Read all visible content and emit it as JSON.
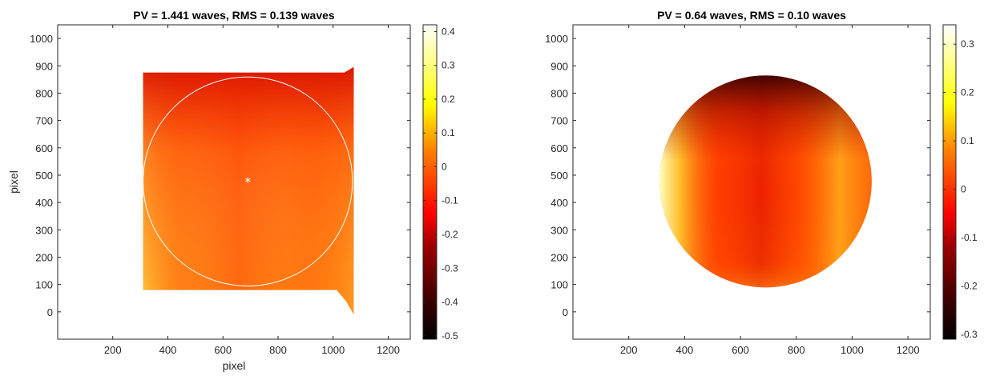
{
  "chart_data": [
    {
      "type": "heatmap",
      "title": "PV = 1.441 waves, RMS = 0.139 waves",
      "xlabel": "pixel",
      "ylabel": "pixel",
      "xlim": [
        0,
        1280
      ],
      "ylim": [
        1050,
        -100
      ],
      "xticks": [
        200,
        400,
        600,
        800,
        1000,
        1200
      ],
      "yticks": [
        0,
        100,
        200,
        300,
        400,
        500,
        600,
        700,
        800,
        900,
        1000
      ],
      "image_extent": {
        "x": [
          0,
          1280
        ],
        "y": [
          0,
          960
        ]
      },
      "colormap": "hot",
      "colorbar": {
        "range": [
          -0.51,
          0.42
        ],
        "ticks": [
          0.4,
          0.3,
          0.2,
          0.1,
          0,
          -0.1,
          -0.2,
          -0.3,
          -0.4,
          -0.5
        ]
      },
      "data_region": {
        "x": [
          310,
          1075
        ],
        "y": [
          80,
          875
        ]
      },
      "overlays": {
        "outer_rect": {
          "x": [
            285,
            1110
          ],
          "y": [
            15,
            915
          ]
        },
        "inner_rect": {
          "x": [
            310,
            1075
          ],
          "y": [
            80,
            875
          ]
        },
        "circle": {
          "cx": 690,
          "cy": 477,
          "rx": 380,
          "ry": 395
        },
        "center_marker": {
          "x": 690,
          "y": 477,
          "symbol": "*"
        }
      }
    },
    {
      "type": "heatmap",
      "title": "PV = 0.64 waves, RMS = 0.10 waves",
      "xlabel": "",
      "ylabel": "",
      "xlim": [
        0,
        1280
      ],
      "ylim": [
        1050,
        -100
      ],
      "xticks": [
        200,
        400,
        600,
        800,
        1000,
        1200
      ],
      "yticks": [
        0,
        100,
        200,
        300,
        400,
        500,
        600,
        700,
        800,
        900,
        1000
      ],
      "image_extent": {
        "x": [
          0,
          1280
        ],
        "y": [
          0,
          960
        ]
      },
      "colormap": "hot",
      "colorbar": {
        "range": [
          -0.31,
          0.34
        ],
        "ticks": [
          0.3,
          0.2,
          0.1,
          0,
          -0.1,
          -0.2,
          -0.3
        ]
      },
      "data_region": {
        "circle": {
          "cx": 690,
          "cy": 477,
          "rx": 380,
          "ry": 395
        }
      }
    }
  ]
}
